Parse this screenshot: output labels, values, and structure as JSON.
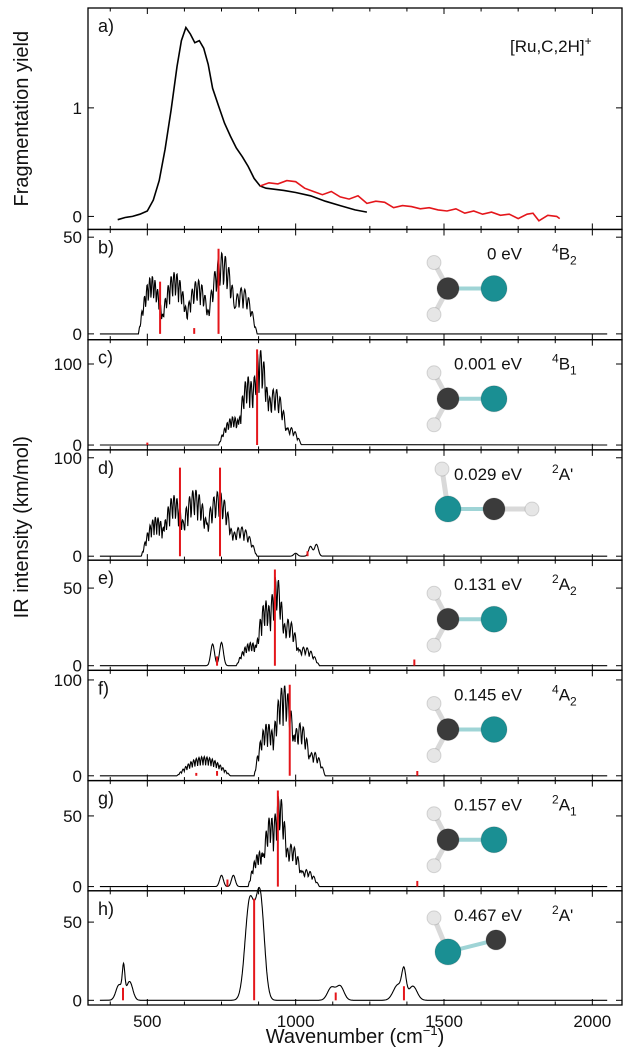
{
  "colors": {
    "experiment": "#000000",
    "experiment_alt": "#e4161b",
    "stick": "#e4161b",
    "calc": "#000000",
    "ru": "#1a8f93",
    "c": "#3b3b3b",
    "h": "#e6e6e6",
    "bond": "#d9d9d9",
    "bond_ru": "#9fd4d6"
  },
  "chart_data": {
    "type": "line",
    "xlabel_main": "Wavenumber (cm",
    "xlabel_sup": "−1",
    "xlabel_close": ")",
    "ylabel_top": "Fragmentation yield",
    "ylabel_bottom": "IR intensity (km/mol)",
    "xlim": [
      300,
      2100
    ],
    "x_ticks": [
      "500",
      "1000",
      "1500",
      "2000"
    ],
    "panels": [
      {
        "letter": "a)",
        "title_main": "[Ru,C,2H]",
        "title_sup": "+",
        "ylim": [
          -0.12,
          1.92
        ],
        "y_ticks": [
          "0",
          "1"
        ],
        "series": [
          {
            "color": "experiment",
            "points": [
              [
                400,
                -0.03
              ],
              [
                425,
                -0.01
              ],
              [
                450,
                0.0
              ],
              [
                475,
                0.02
              ],
              [
                500,
                0.05
              ],
              [
                520,
                0.15
              ],
              [
                540,
                0.33
              ],
              [
                560,
                0.62
              ],
              [
                580,
                0.98
              ],
              [
                600,
                1.38
              ],
              [
                615,
                1.62
              ],
              [
                630,
                1.74
              ],
              [
                645,
                1.68
              ],
              [
                660,
                1.6
              ],
              [
                675,
                1.62
              ],
              [
                690,
                1.55
              ],
              [
                705,
                1.4
              ],
              [
                720,
                1.18
              ],
              [
                740,
                1.02
              ],
              [
                760,
                0.86
              ],
              [
                780,
                0.74
              ],
              [
                800,
                0.63
              ],
              [
                820,
                0.55
              ],
              [
                840,
                0.46
              ],
              [
                860,
                0.35
              ],
              [
                880,
                0.28
              ],
              [
                900,
                0.26
              ],
              [
                930,
                0.25
              ],
              [
                960,
                0.24
              ],
              [
                1000,
                0.22
              ],
              [
                1050,
                0.19
              ],
              [
                1100,
                0.14
              ],
              [
                1150,
                0.1
              ],
              [
                1200,
                0.06
              ],
              [
                1240,
                0.04
              ]
            ]
          },
          {
            "color": "experiment_alt",
            "points": [
              [
                880,
                0.28
              ],
              [
                910,
                0.31
              ],
              [
                940,
                0.3
              ],
              [
                970,
                0.33
              ],
              [
                1000,
                0.32
              ],
              [
                1030,
                0.26
              ],
              [
                1060,
                0.23
              ],
              [
                1090,
                0.2
              ],
              [
                1120,
                0.23
              ],
              [
                1150,
                0.18
              ],
              [
                1180,
                0.16
              ],
              [
                1210,
                0.19
              ],
              [
                1240,
                0.12
              ],
              [
                1270,
                0.14
              ],
              [
                1300,
                0.13
              ],
              [
                1330,
                0.08
              ],
              [
                1360,
                0.1
              ],
              [
                1390,
                0.09
              ],
              [
                1420,
                0.07
              ],
              [
                1450,
                0.08
              ],
              [
                1480,
                0.06
              ],
              [
                1510,
                0.05
              ],
              [
                1540,
                0.07
              ],
              [
                1570,
                0.03
              ],
              [
                1600,
                0.05
              ],
              [
                1630,
                0.02
              ],
              [
                1660,
                0.04
              ],
              [
                1690,
                0.01
              ],
              [
                1720,
                0.02
              ],
              [
                1750,
                -0.02
              ],
              [
                1780,
                0.02
              ],
              [
                1800,
                0.03
              ],
              [
                1820,
                -0.04
              ],
              [
                1850,
                0.01
              ],
              [
                1880,
                0.0
              ],
              [
                1890,
                -0.02
              ]
            ]
          }
        ]
      },
      {
        "letter": "b)",
        "energy": "0 eV",
        "state_pre": "4",
        "state_main": "B",
        "state_sub": "2",
        "ylim": [
          -3,
          54
        ],
        "y_ticks": [
          "0",
          "50"
        ],
        "envelope": [
          [
            490,
            540,
            30
          ],
          [
            560,
            625,
            32
          ],
          [
            640,
            700,
            28
          ],
          [
            715,
            790,
            42
          ],
          [
            790,
            850,
            24
          ]
        ],
        "sticks": [
          [
            543,
            27
          ],
          [
            658,
            3
          ],
          [
            740,
            44
          ]
        ],
        "calc_range": [
          440,
          880
        ],
        "molecule": "bent-C"
      },
      {
        "letter": "c)",
        "energy": "0.001 eV",
        "state_pre": "4",
        "state_main": "B",
        "state_sub": "1",
        "ylim": [
          -6,
          130
        ],
        "y_ticks": [
          "0",
          "100"
        ],
        "envelope": [
          [
            760,
            820,
            35
          ],
          [
            820,
            860,
            85
          ],
          [
            860,
            900,
            118
          ],
          [
            900,
            960,
            70
          ],
          [
            960,
            1000,
            22
          ]
        ],
        "sticks": [
          [
            870,
            118
          ],
          [
            500,
            3
          ]
        ],
        "calc_range": [
          380,
          1020
        ],
        "molecule": "bent-C"
      },
      {
        "letter": "d)",
        "energy": "0.029 eV",
        "state_pre": "2",
        "state_main": "A",
        "state_sub": "'",
        "ylim": [
          -4,
          108
        ],
        "y_ticks": [
          "0",
          "100"
        ],
        "envelope": [
          [
            500,
            560,
            40
          ],
          [
            560,
            620,
            62
          ],
          [
            620,
            700,
            68
          ],
          [
            700,
            780,
            66
          ],
          [
            780,
            850,
            30
          ]
        ],
        "sticks": [
          [
            610,
            90
          ],
          [
            745,
            90
          ],
          [
            1040,
            5
          ]
        ],
        "calc_range": [
          470,
          1090
        ],
        "side_peaks": [
          [
            1000,
            3
          ],
          [
            1050,
            10
          ],
          [
            1070,
            12
          ]
        ],
        "molecule": "linear"
      },
      {
        "letter": "e)",
        "energy": "0.131 eV",
        "state_pre": "2",
        "state_main": "A",
        "state_sub": "2",
        "ylim": [
          -3,
          68
        ],
        "y_ticks": [
          "0",
          "50"
        ],
        "envelope": [
          [
            820,
            880,
            15
          ],
          [
            880,
            920,
            42
          ],
          [
            920,
            950,
            58
          ],
          [
            950,
            1000,
            30
          ],
          [
            1000,
            1060,
            12
          ]
        ],
        "sticks": [
          [
            735,
            6
          ],
          [
            930,
            62
          ],
          [
            1400,
            4
          ]
        ],
        "calc_range": [
          690,
          1090
        ],
        "side_peaks": [
          [
            720,
            14
          ],
          [
            750,
            15
          ],
          [
            1390,
            4
          ],
          [
            1420,
            4
          ]
        ],
        "molecule": "bent-C"
      },
      {
        "letter": "f)",
        "energy": "0.145 eV",
        "state_pre": "4",
        "state_main": "A",
        "state_sub": "2",
        "ylim": [
          -5,
          110
        ],
        "y_ticks": [
          "0",
          "100"
        ],
        "envelope": [
          [
            620,
            760,
            20
          ],
          [
            880,
            930,
            55
          ],
          [
            930,
            990,
            95
          ],
          [
            990,
            1040,
            55
          ],
          [
            1040,
            1080,
            25
          ]
        ],
        "sticks": [
          [
            665,
            3
          ],
          [
            735,
            5
          ],
          [
            980,
            95
          ],
          [
            1410,
            5
          ]
        ],
        "calc_range": [
          590,
          1100
        ],
        "side_peaks": [
          [
            1395,
            5
          ],
          [
            1420,
            4
          ]
        ],
        "molecule": "bent-C"
      },
      {
        "letter": "g)",
        "energy": "0.157 eV",
        "state_pre": "2",
        "state_main": "A",
        "state_sub": "1",
        "ylim": [
          -3,
          75
        ],
        "y_ticks": [
          "0",
          "50"
        ],
        "envelope": [
          [
            860,
            900,
            25
          ],
          [
            900,
            930,
            50
          ],
          [
            930,
            960,
            65
          ],
          [
            960,
            1010,
            30
          ],
          [
            1010,
            1060,
            12
          ]
        ],
        "sticks": [
          [
            770,
            5
          ],
          [
            940,
            68
          ],
          [
            1410,
            4
          ]
        ],
        "calc_range": [
          730,
          1100
        ],
        "side_peaks": [
          [
            750,
            8
          ],
          [
            790,
            8
          ],
          [
            1395,
            4
          ],
          [
            1420,
            4
          ]
        ],
        "molecule": "bent-C"
      },
      {
        "letter": "h)",
        "energy": "0.467 eV",
        "state_pre": "2",
        "state_main": "A",
        "state_sub": "'",
        "ylim": [
          -3,
          70
        ],
        "y_ticks": [
          "0",
          "50"
        ],
        "broad_peaks": [
          [
            405,
            10,
            15
          ],
          [
            420,
            18,
            6
          ],
          [
            440,
            12,
            15
          ],
          [
            845,
            63,
            22
          ],
          [
            880,
            66,
            20
          ],
          [
            1120,
            8,
            18
          ],
          [
            1150,
            9,
            18
          ],
          [
            1345,
            10,
            22
          ],
          [
            1365,
            16,
            10
          ],
          [
            1395,
            9,
            20
          ]
        ],
        "sticks": [
          [
            418,
            8
          ],
          [
            860,
            65
          ],
          [
            1135,
            5
          ],
          [
            1365,
            9
          ]
        ],
        "calc_range": [
          370,
          1460
        ],
        "molecule": "bent-Ru"
      }
    ]
  }
}
